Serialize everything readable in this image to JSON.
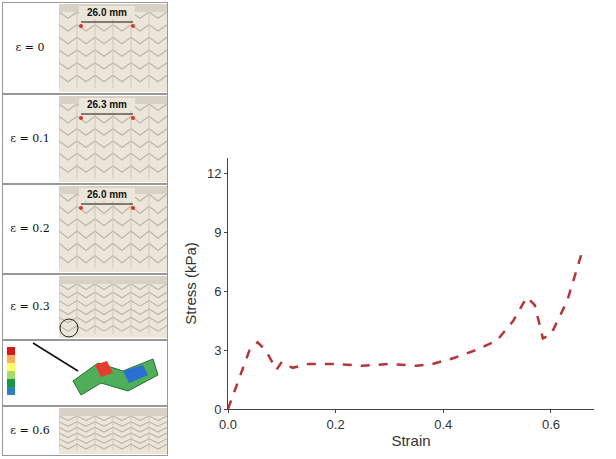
{
  "chart_data": {
    "type": "line",
    "x": [
      0,
      0.02,
      0.04,
      0.055,
      0.07,
      0.09,
      0.1,
      0.12,
      0.15,
      0.2,
      0.25,
      0.3,
      0.35,
      0.38,
      0.42,
      0.46,
      0.5,
      0.53,
      0.555,
      0.57,
      0.585,
      0.6,
      0.63,
      0.66
    ],
    "values": [
      0,
      1.5,
      3.0,
      3.4,
      3.0,
      2.0,
      2.4,
      2.1,
      2.3,
      2.3,
      2.2,
      2.3,
      2.2,
      2.3,
      2.6,
      3.0,
      3.5,
      4.5,
      5.7,
      5.3,
      3.6,
      3.8,
      5.5,
      8.2
    ],
    "color": "#b5353b",
    "line_style": "dash",
    "xlabel": "Strain",
    "ylabel": "Stress (kPa)",
    "xlim": [
      0,
      0.68
    ],
    "ylim": [
      0,
      12.8
    ],
    "xticks": [
      {
        "value": 0,
        "label": "0.0"
      },
      0.2,
      0.4,
      0.6
    ],
    "yticks": [
      0,
      3,
      6,
      9,
      12
    ],
    "grid": false
  },
  "strain_panels": [
    {
      "label": "ε = 0",
      "measurement": "26.0 mm"
    },
    {
      "label": "ε = 0.1",
      "measurement": "26.3 mm"
    },
    {
      "label": "ε = 0.2",
      "measurement": "26.0 mm"
    },
    {
      "label": "ε = 0.3"
    },
    {
      "label": "ε = 0.6"
    }
  ]
}
